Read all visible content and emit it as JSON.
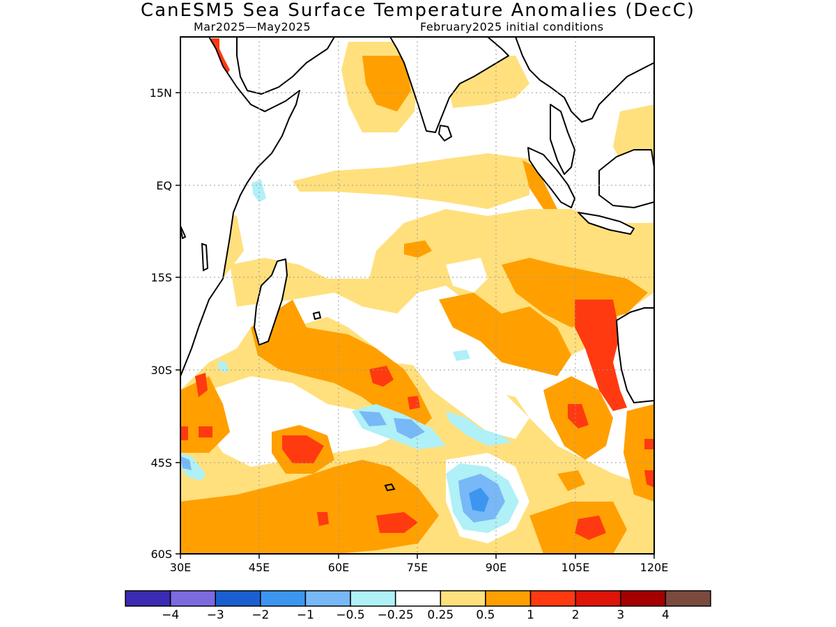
{
  "title": "CanESM5 Sea Surface Temperature Anomalies (DecC)",
  "subtitle_left": "Mar2025—May2025",
  "subtitle_right": "February2025 initial conditions",
  "chart_data": {
    "type": "heatmap",
    "map_type": "filled contour map of sea surface temperature anomalies",
    "region": "Indian Ocean",
    "x_axis": {
      "range": [
        "30E",
        "120E"
      ],
      "tick_labels": [
        "30E",
        "45E",
        "60E",
        "75E",
        "90E",
        "105E",
        "120E"
      ]
    },
    "y_axis": {
      "range": [
        "60S",
        "25N"
      ],
      "tick_labels": [
        "60S",
        "45S",
        "30S",
        "15S",
        "EQ",
        "15N"
      ]
    },
    "grid": "dotted",
    "colorbar": {
      "placement": "bottom",
      "colors": [
        "#3b2bb3",
        "#7b6ae0",
        "#1a5fd1",
        "#3c96f0",
        "#78b8f6",
        "#b0f0f7",
        "#ffffff",
        "#ffe07d",
        "#ffa000",
        "#ff3a10",
        "#de1408",
        "#a50000",
        "#7b4a3f"
      ],
      "labels": [
        "−4",
        "−3",
        "−2",
        "−1",
        "−0.5",
        "−0.25",
        "0.25",
        "0.5",
        "1",
        "2",
        "3",
        "4"
      ]
    }
  }
}
